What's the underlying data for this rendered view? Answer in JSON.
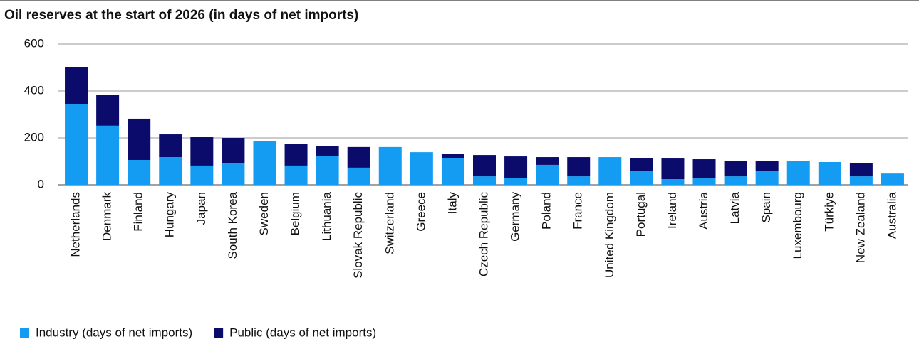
{
  "chart_data": {
    "type": "bar",
    "stacked": true,
    "title": "Oil reserves at the start of 2026 (in days of net imports)",
    "categories": [
      "Netherlands",
      "Denmark",
      "Finland",
      "Hungary",
      "Japan",
      "South Korea",
      "Sweden",
      "Belgium",
      "Lithuania",
      "Slovak Republic",
      "Switzerland",
      "Greece",
      "Italy",
      "Czech Republic",
      "Germany",
      "Poland",
      "France",
      "United Kingdom",
      "Portugal",
      "Ireland",
      "Austria",
      "Latvia",
      "Spain",
      "Luxembourg",
      "Türkiye",
      "New Zealand",
      "Australia"
    ],
    "series": [
      {
        "name": "Industry (days of net imports)",
        "color": "#139cf2",
        "values": [
          345,
          252,
          106,
          118,
          82,
          91,
          185,
          82,
          124,
          73,
          161,
          139,
          115,
          36,
          30,
          85,
          36,
          118,
          58,
          24,
          27,
          36,
          58,
          100,
          97,
          36,
          48
        ]
      },
      {
        "name": "Public (days of net imports)",
        "color": "#0b0b6b",
        "values": [
          158,
          130,
          176,
          97,
          121,
          109,
          0,
          91,
          40,
          88,
          0,
          0,
          18,
          91,
          91,
          33,
          82,
          0,
          57,
          88,
          82,
          64,
          42,
          0,
          0,
          55,
          0
        ]
      }
    ],
    "ylim": [
      0,
      600
    ],
    "yticks": [
      0,
      200,
      400,
      600
    ],
    "grid": true,
    "legend": "bottom-left"
  }
}
